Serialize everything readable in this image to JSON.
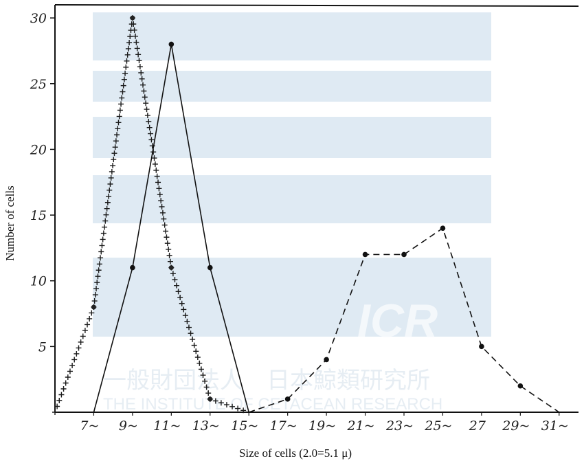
{
  "chart_data": {
    "type": "line",
    "xlabel": "Size of cells (2.0=5.1 μ)",
    "ylabel": "Number of cells",
    "categories": [
      "7~",
      "9~",
      "11~",
      "13~",
      "15~",
      "17~",
      "19~",
      "21~",
      "23~",
      "25~",
      "27",
      "29~",
      "31~"
    ],
    "yticks": [
      "5",
      "10",
      "15",
      "20",
      "25",
      "30"
    ],
    "ylim": [
      0,
      31
    ],
    "xlim": [
      5,
      32
    ],
    "grid": false,
    "series": [
      {
        "style": "cross-dotted",
        "x": [
          5,
          7,
          9,
          11,
          13,
          15
        ],
        "y": [
          0,
          8,
          30,
          11,
          1,
          0
        ]
      },
      {
        "style": "solid",
        "x": [
          7,
          9,
          11,
          13,
          15
        ],
        "y": [
          0,
          11,
          28,
          11,
          0
        ]
      },
      {
        "style": "dashed",
        "x": [
          15,
          17,
          19,
          21,
          23,
          25,
          27,
          29,
          31
        ],
        "y": [
          0,
          1,
          4,
          12,
          12,
          14,
          5,
          2,
          0
        ]
      }
    ],
    "watermark": {
      "logo_text": "ICR",
      "line1": "一般財団法人　日本鯨類研究所",
      "line2": "THE INSTITUTE OF CETACEAN RESEARCH"
    }
  }
}
